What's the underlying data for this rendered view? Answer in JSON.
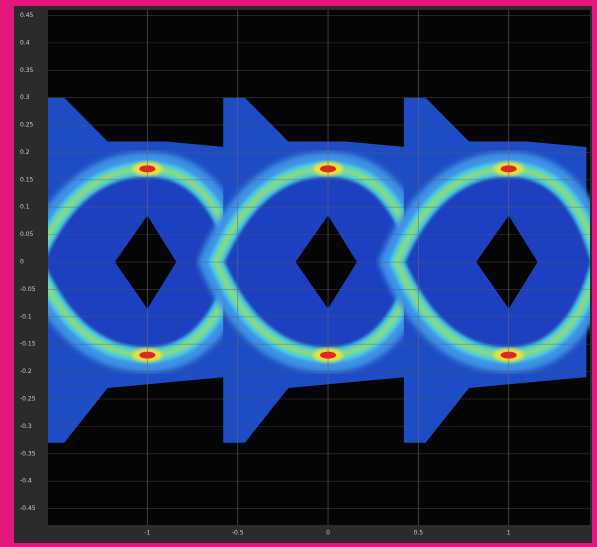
{
  "chart_data": {
    "type": "eye-diagram",
    "xlim": [
      -1.55,
      1.45
    ],
    "xticks": [
      -1,
      -0.5,
      0,
      0.5,
      1
    ],
    "ylim": [
      -0.48,
      0.46
    ],
    "yticks": [
      0.45,
      0.4,
      0.35,
      0.3,
      0.25,
      0.2,
      0.15,
      0.1,
      0.05,
      0,
      -0.05,
      -0.1,
      -0.15,
      -0.2,
      -0.25,
      -0.3,
      -0.35,
      -0.4,
      -0.45
    ],
    "grid": true
  }
}
